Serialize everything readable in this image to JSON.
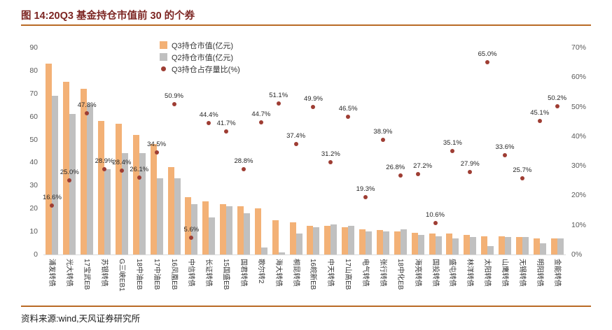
{
  "header": {
    "title": "图 14:20Q3 基金持仓市值前 30 的个券"
  },
  "footer": {
    "source": "资料来源:wind,天风证券研究所"
  },
  "chart_data": {
    "type": "bar",
    "subtype": "grouped-bars-with-secondary-axis-scatter",
    "title": "20Q3 基金持仓市值前 30 的个券",
    "categories": [
      "浦发转债",
      "光大转债",
      "17宝武EB",
      "苏银转债",
      "G三峡EB1",
      "18中油EB",
      "17中油EB",
      "16凤凰EB",
      "中信转债",
      "长证转债",
      "15国盛EB",
      "国君转债",
      "歌尔转2",
      "海大转债",
      "桐昆转债",
      "16皖新EB",
      "中天转债",
      "17山高EB",
      "电气转债",
      "张行转债",
      "18中化EB",
      "海亮转债",
      "国投转债",
      "盛屯转债",
      "林洋转债",
      "太阳转债",
      "山鹰转债",
      "无锡转债",
      "明阳转债",
      "金能转债"
    ],
    "series": [
      {
        "name": "Q3持仓市值(亿元)",
        "kind": "bar",
        "axis": "left",
        "marker": "square",
        "color": "#F3B176",
        "values": [
          83,
          75,
          72,
          58,
          57,
          52,
          48,
          38,
          25,
          23,
          22,
          21,
          20,
          15,
          14,
          12.5,
          12.5,
          12,
          11,
          10.5,
          10,
          9.5,
          9,
          9,
          8.5,
          8,
          8,
          7.5,
          7,
          7
        ]
      },
      {
        "name": "Q2持仓市值(亿元)",
        "kind": "bar",
        "axis": "left",
        "marker": "square",
        "color": "#C0C0C0",
        "values": [
          69,
          61,
          65,
          37,
          44,
          44,
          33,
          33,
          22,
          16,
          21,
          18,
          3,
          1,
          9,
          12,
          13,
          12.5,
          10,
          10,
          11,
          8.5,
          8,
          7,
          7.5,
          3.5,
          7.5,
          7.5,
          5,
          7
        ]
      },
      {
        "name": "Q3持仓占存量比(%)",
        "kind": "scatter",
        "axis": "right",
        "marker": "dot",
        "color": "#9E3D33",
        "values": [
          16.6,
          25.0,
          47.8,
          28.9,
          28.4,
          26.1,
          34.5,
          50.9,
          5.6,
          44.4,
          41.7,
          28.8,
          44.7,
          51.1,
          37.4,
          49.9,
          31.2,
          46.5,
          19.3,
          38.9,
          26.8,
          27.2,
          10.6,
          35.1,
          27.9,
          65.0,
          33.6,
          25.7,
          45.1,
          50.2
        ],
        "labels": [
          "16.6%",
          "25.0%",
          "47.8%",
          "28.9%",
          "28.4%",
          "26.1%",
          "34.5%",
          "50.9%",
          "5.6%",
          "44.4%",
          "41.7%",
          "28.8%",
          "44.7%",
          "51.1%",
          "37.4%",
          "49.9%",
          "31.2%",
          "46.5%",
          "19.3%",
          "38.9%",
          "26.8%",
          "27.2%",
          "10.6%",
          "35.1%",
          "27.9%",
          "65.0%",
          "33.6%",
          "25.7%",
          "45.1%",
          "50.2%"
        ]
      }
    ],
    "left_axis": {
      "min": 0,
      "max": 90,
      "step": 10,
      "ticks": [
        "0",
        "10",
        "20",
        "30",
        "40",
        "50",
        "60",
        "70",
        "80",
        "90"
      ]
    },
    "right_axis": {
      "min": 0,
      "max": 70,
      "step": 10,
      "ticks": [
        "0%",
        "10%",
        "20%",
        "30%",
        "40%",
        "50%",
        "60%",
        "70%"
      ]
    },
    "legend_position": "top-center",
    "grid": false,
    "accent_colors": {
      "title_text": "#7C2522",
      "rule_line": "#B96A25",
      "q3_bar": "#F3B176",
      "q2_bar": "#C0C0C0",
      "ratio_dot": "#9E3D33"
    }
  }
}
